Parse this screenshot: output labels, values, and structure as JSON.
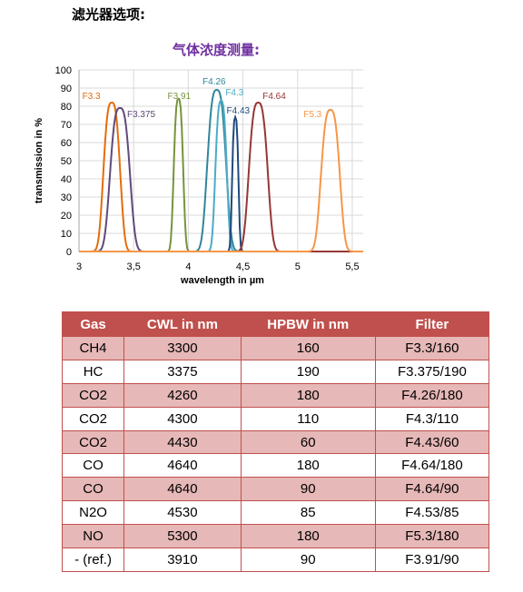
{
  "page": {
    "heading": "滤光器选项:"
  },
  "chart_data": {
    "type": "line",
    "title": "气体浓度测量:",
    "xlabel": "wavelength in µm",
    "ylabel": "transmission in %",
    "xlim": [
      3,
      5.6
    ],
    "ylim": [
      0,
      100
    ],
    "x_ticks": [
      "3",
      "3,5",
      "4",
      "4,5",
      "5",
      "5,5"
    ],
    "y_ticks": [
      "0",
      "10",
      "20",
      "30",
      "40",
      "50",
      "60",
      "70",
      "80",
      "90",
      "100"
    ],
    "grid": true,
    "series": [
      {
        "name": "F3.3",
        "center": 3.3,
        "hpbw": 0.16,
        "peak": 82,
        "color": "#e46c0a",
        "label_x": 3.03,
        "label_y": 84,
        "label_anchor": "start"
      },
      {
        "name": "F3.375",
        "center": 3.375,
        "hpbw": 0.19,
        "peak": 79,
        "color": "#604a7b",
        "label_x": 3.44,
        "label_y": 74,
        "label_anchor": "start"
      },
      {
        "name": "F3.91",
        "center": 3.91,
        "hpbw": 0.09,
        "peak": 84,
        "color": "#77933c",
        "label_x": 3.81,
        "label_y": 84,
        "label_anchor": "start"
      },
      {
        "name": "F4.26",
        "center": 4.26,
        "hpbw": 0.18,
        "peak": 89,
        "color": "#31859c",
        "label_x": 4.13,
        "label_y": 92,
        "label_anchor": "start"
      },
      {
        "name": "F4.3",
        "center": 4.3,
        "hpbw": 0.11,
        "peak": 83,
        "color": "#4bacc6",
        "label_x": 4.34,
        "label_y": 86,
        "label_anchor": "start"
      },
      {
        "name": "F4.43",
        "center": 4.43,
        "hpbw": 0.06,
        "peak": 74,
        "color": "#1f497d",
        "label_x": 4.35,
        "label_y": 76,
        "label_anchor": "start"
      },
      {
        "name": "F4.64",
        "center": 4.64,
        "hpbw": 0.18,
        "peak": 82,
        "color": "#953735",
        "label_x": 4.68,
        "label_y": 84,
        "label_anchor": "start"
      },
      {
        "name": "F5.3",
        "center": 5.3,
        "hpbw": 0.18,
        "peak": 78,
        "color": "#f79646",
        "label_x": 5.22,
        "label_y": 74,
        "label_anchor": "end"
      }
    ]
  },
  "table": {
    "headers": [
      "Gas",
      "CWL in nm",
      "HPBW in nm",
      "Filter"
    ],
    "rows": [
      [
        "CH4",
        "3300",
        "160",
        "F3.3/160"
      ],
      [
        "HC",
        "3375",
        "190",
        "F3.375/190"
      ],
      [
        "CO2",
        "4260",
        "180",
        "F4.26/180"
      ],
      [
        "CO2",
        "4300",
        "110",
        "F4.3/110"
      ],
      [
        "CO2",
        "4430",
        "60",
        "F4.43/60"
      ],
      [
        "CO",
        "4640",
        "180",
        "F4.64/180"
      ],
      [
        "CO",
        "4640",
        "90",
        "F4.64/90"
      ],
      [
        "N2O",
        "4530",
        "85",
        "F4.53/85"
      ],
      [
        "NO",
        "5300",
        "180",
        "F5.3/180"
      ],
      [
        "- (ref.)",
        "3910",
        "90",
        "F3.91/90"
      ]
    ]
  }
}
